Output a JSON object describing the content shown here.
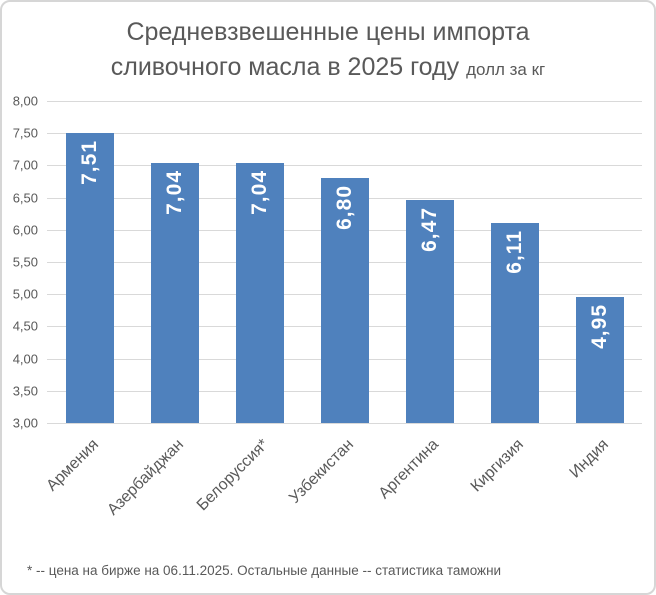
{
  "title": {
    "line1": "Средневзвешенные цены импорта",
    "line2": "сливочного масла в 2025 году",
    "unit": "долл за кг"
  },
  "footnote": "* -- цена на бирже на 06.11.2025. Остальные данные -- статистика таможни",
  "colors": {
    "bar": "#4f81bd",
    "text": "#595959",
    "gridline": "#d9d9d9",
    "value_label": "#ffffff",
    "background": "#ffffff",
    "border": "#d6d6d6"
  },
  "chart_data": {
    "type": "bar",
    "title": "Средневзвешенные цены импорта сливочного масла в 2025 году",
    "unit_label": "долл за кг",
    "categories": [
      "Армения",
      "Азербайджан",
      "Белоруссия*",
      "Узбекистан",
      "Аргентина",
      "Киргизия",
      "Индия"
    ],
    "values": [
      7.51,
      7.04,
      7.04,
      6.8,
      6.47,
      6.11,
      4.95
    ],
    "value_labels": [
      "7,51",
      "7,04",
      "7,04",
      "6,80",
      "6,47",
      "6,11",
      "4,95"
    ],
    "ylim": [
      3.0,
      8.0
    ],
    "ytick_step": 0.5,
    "yticks": [
      "8,00",
      "7,50",
      "7,00",
      "6,50",
      "6,00",
      "5,50",
      "5,00",
      "4,50",
      "4,00",
      "3,50",
      "3,00"
    ],
    "grid": true,
    "legend": false,
    "bar_label_rotation": "bottom-to-top",
    "category_label_rotation_deg": -45
  }
}
